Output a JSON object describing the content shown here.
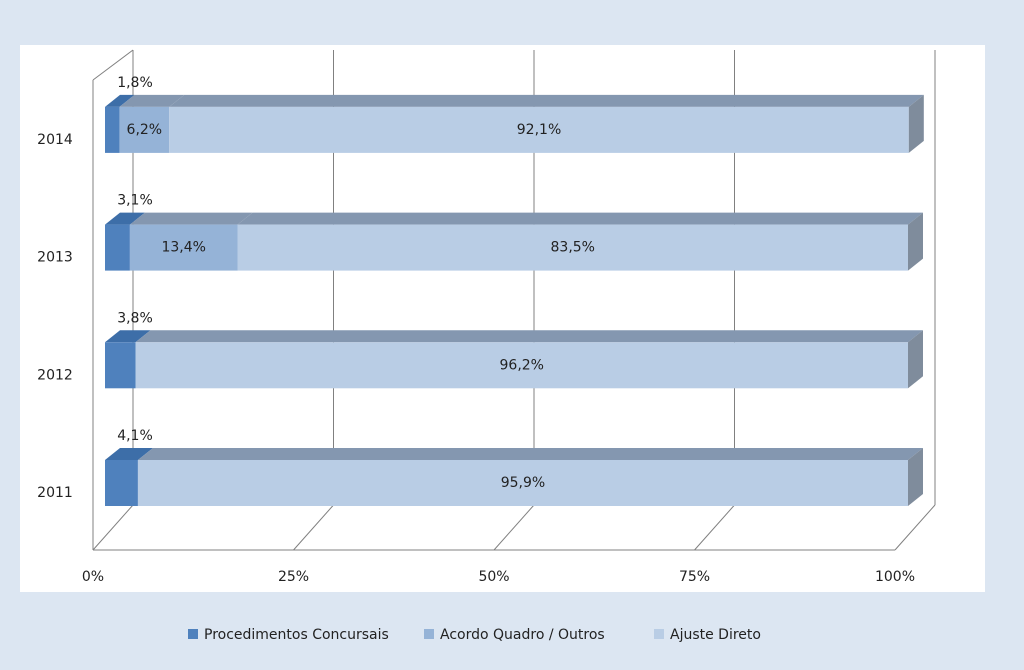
{
  "chart_data": {
    "type": "bar",
    "orientation": "horizontal",
    "stacked": true,
    "categories": [
      "2011",
      "2012",
      "2013",
      "2014"
    ],
    "series": [
      {
        "name": "Procedimentos Concursais",
        "color": "#4f81bd",
        "values": [
          4.1,
          3.8,
          3.1,
          1.8
        ],
        "value_labels": [
          "4,1%",
          "3,8%",
          "3,1%",
          "1,8%"
        ]
      },
      {
        "name": "Acordo Quadro / Outros",
        "color": "#95b3d7",
        "values": [
          null,
          null,
          13.4,
          6.2
        ],
        "value_labels": [
          null,
          null,
          "13,4%",
          "6,2%"
        ]
      },
      {
        "name": "Ajuste Direto",
        "color": "#b9cde5",
        "values": [
          95.9,
          96.2,
          83.5,
          92.1
        ],
        "value_labels": [
          "95,9%",
          "96,2%",
          "83,5%",
          "92,1%"
        ]
      }
    ],
    "xlim": [
      0,
      100
    ],
    "xticks": [
      {
        "value": 0,
        "label": "0%"
      },
      {
        "value": 25,
        "label": "25%"
      },
      {
        "value": 50,
        "label": "50%"
      },
      {
        "value": 75,
        "label": "75%"
      },
      {
        "value": 100,
        "label": "100%"
      }
    ],
    "grid": true,
    "legend": "bottom"
  }
}
